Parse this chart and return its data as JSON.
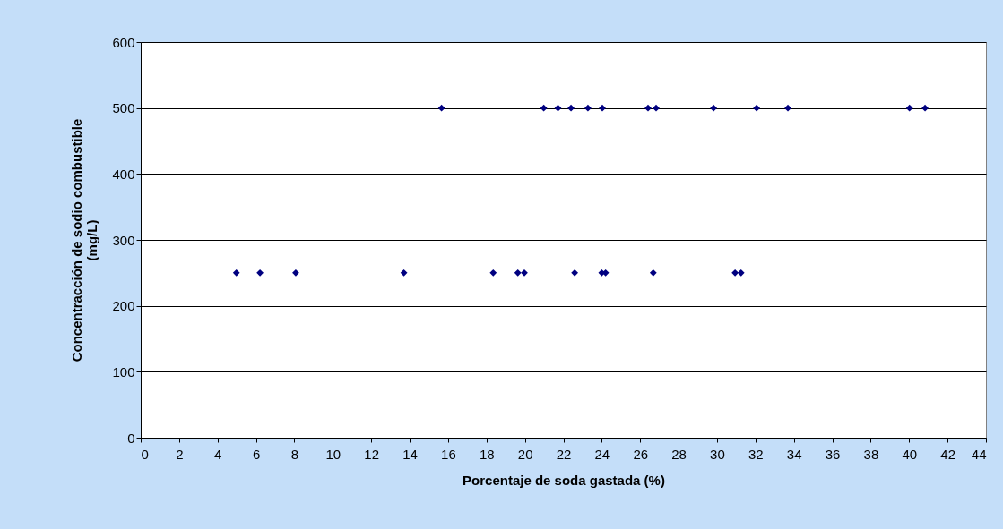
{
  "chart_data": {
    "type": "scatter",
    "xlabel": "Porcentaje de soda gastada (%)",
    "ylabel": "Concentracción de sodio combustible\n(mg/L)",
    "x": [
      4.98,
      6.21,
      8.07,
      13.7,
      18.35,
      19.63,
      19.97,
      22.59,
      24.0,
      24.2,
      26.68,
      30.94,
      31.25,
      15.66,
      20.98,
      21.72,
      22.4,
      23.28,
      24.03,
      26.41,
      26.83,
      29.82,
      32.06,
      33.69,
      40.02,
      40.83
    ],
    "series": [
      {
        "color": "#000080",
        "values": [
          250,
          250,
          250,
          250,
          250,
          250,
          250,
          250,
          250,
          250,
          250,
          250,
          250,
          500,
          500,
          500,
          500,
          500,
          500,
          500,
          500,
          500,
          500,
          500,
          500,
          500
        ]
      }
    ],
    "xlim": [
      0,
      44
    ],
    "xticks": [
      0,
      2,
      4,
      6,
      8,
      10,
      12,
      14,
      16,
      18,
      20,
      22,
      24,
      26,
      28,
      30,
      32,
      34,
      36,
      38,
      40,
      42,
      44
    ],
    "ylim": [
      0,
      600
    ],
    "yticks": [
      0,
      100,
      200,
      300,
      400,
      500,
      600
    ],
    "grid": "y",
    "marker": "diamond"
  }
}
